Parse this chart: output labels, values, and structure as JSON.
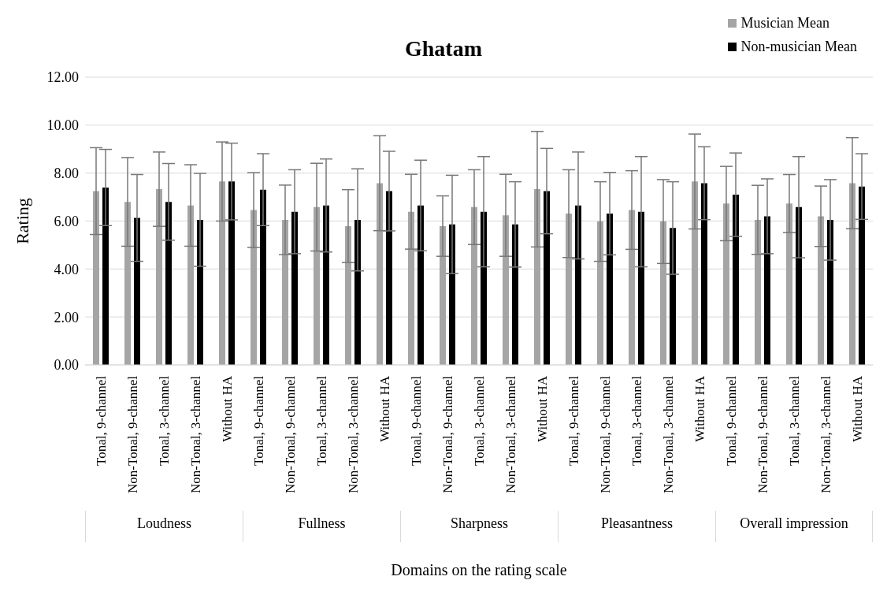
{
  "chart_data": {
    "type": "bar",
    "title": "Ghatam",
    "xlabel": "Domains on the rating scale",
    "ylabel": "Rating",
    "categories": [
      "Tonal, 9-channel",
      "Non-Tonal, 9-channel",
      "Tonal, 3-channel",
      "Non-Tonal, 3-channel",
      "Without HA",
      "Tonal, 9-channel",
      "Non-Tonal, 9-channel",
      "Tonal, 3-channel",
      "Non-Tonal, 3-channel",
      "Without HA",
      "Tonal, 9-channel",
      "Non-Tonal, 9-channel",
      "Tonal, 3-channel",
      "Non-Tonal, 3-channel",
      "Without HA",
      "Tonal, 9-channel",
      "Non-Tonal, 9-channel",
      "Tonal, 3-channel",
      "Non-Tonal, 3-channel",
      "Without HA",
      "Tonal, 9-channel",
      "Non-Tonal, 9-channel",
      "Tonal, 3-channel",
      "Non-Tonal, 3-channel",
      "Without HA"
    ],
    "annotations": [
      "Loudness",
      "Fullness",
      "Sharpness",
      "Pleasantness",
      "Overall impression"
    ],
    "series": [
      {
        "name": "Musician Mean",
        "color": "#a5a5a5",
        "values": [
          7.25,
          6.8,
          7.33,
          6.65,
          7.65,
          6.46,
          6.05,
          6.58,
          5.79,
          7.58,
          6.39,
          5.79,
          6.58,
          6.24,
          7.33,
          6.31,
          5.98,
          6.46,
          5.98,
          7.65,
          6.73,
          6.05,
          6.73,
          6.2,
          7.58
        ],
        "errors": [
          1.81,
          1.85,
          1.55,
          1.7,
          1.65,
          1.56,
          1.45,
          1.83,
          1.52,
          1.98,
          1.56,
          1.26,
          1.56,
          1.71,
          2.41,
          1.83,
          1.66,
          1.64,
          1.75,
          1.98,
          1.55,
          1.44,
          1.21,
          1.26,
          1.9
        ]
      },
      {
        "name": "Non-musician Mean",
        "color": "#000000",
        "values": [
          7.4,
          6.13,
          6.8,
          6.05,
          7.65,
          7.31,
          6.39,
          6.65,
          6.05,
          7.25,
          6.65,
          5.86,
          6.39,
          5.86,
          7.25,
          6.65,
          6.31,
          6.39,
          5.71,
          7.58,
          7.1,
          6.2,
          6.58,
          6.05,
          7.44
        ],
        "errors": [
          1.59,
          1.81,
          1.6,
          1.94,
          1.6,
          1.5,
          1.75,
          1.94,
          2.13,
          1.66,
          1.89,
          2.05,
          2.3,
          1.78,
          1.78,
          2.23,
          1.72,
          2.3,
          1.93,
          1.52,
          1.74,
          1.56,
          2.11,
          1.68,
          1.37
        ]
      }
    ],
    "ylim": [
      0,
      12
    ],
    "yticks": [
      {
        "value": 0,
        "label": "0.00"
      },
      {
        "value": 2,
        "label": "2.00"
      },
      {
        "value": 4,
        "label": "4.00"
      },
      {
        "value": 6,
        "label": "6.00"
      },
      {
        "value": 8,
        "label": "8.00"
      },
      {
        "value": 10,
        "label": "10.00"
      },
      {
        "value": 12,
        "label": "12.00"
      }
    ],
    "grid": "y",
    "legend": "top right"
  }
}
